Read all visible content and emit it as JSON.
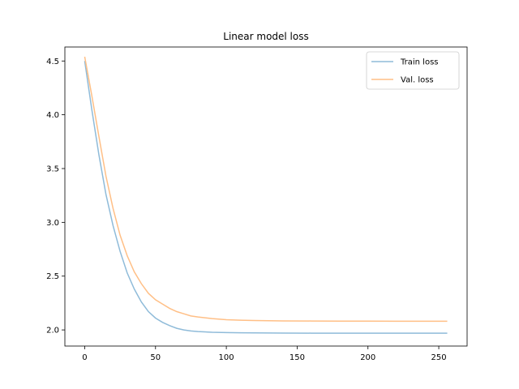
{
  "chart_data": {
    "type": "line",
    "title": "Linear model loss",
    "xlabel": "",
    "ylabel": "",
    "xlim": [
      -14,
      270
    ],
    "ylim": [
      1.85,
      4.63
    ],
    "xticks": [
      0,
      50,
      100,
      150,
      200,
      250
    ],
    "xtick_labels": [
      "0",
      "50",
      "100",
      "150",
      "200",
      "250"
    ],
    "yticks": [
      2.0,
      2.5,
      3.0,
      3.5,
      4.0,
      4.5
    ],
    "ytick_labels": [
      "2.0",
      "2.5",
      "3.0",
      "3.5",
      "4.0",
      "4.5"
    ],
    "grid": false,
    "legend_position": "top-right",
    "series": [
      {
        "name": "Train loss",
        "color": "#8fbbd9",
        "x": [
          0,
          5,
          10,
          15,
          20,
          25,
          30,
          35,
          40,
          45,
          50,
          55,
          60,
          65,
          70,
          75,
          80,
          90,
          100,
          110,
          120,
          140,
          160,
          180,
          200,
          220,
          240,
          256
        ],
        "y": [
          4.5,
          4.05,
          3.63,
          3.26,
          2.97,
          2.73,
          2.53,
          2.38,
          2.26,
          2.17,
          2.11,
          2.07,
          2.04,
          2.015,
          2.0,
          1.99,
          1.985,
          1.978,
          1.975,
          1.973,
          1.972,
          1.971,
          1.97,
          1.97,
          1.97,
          1.97,
          1.97,
          1.97
        ]
      },
      {
        "name": "Val. loss",
        "color": "#ffbf86",
        "x": [
          0,
          5,
          10,
          15,
          20,
          25,
          30,
          35,
          40,
          45,
          50,
          55,
          60,
          65,
          70,
          75,
          80,
          90,
          100,
          110,
          120,
          140,
          160,
          180,
          200,
          220,
          240,
          256
        ],
        "y": [
          4.54,
          4.18,
          3.8,
          3.43,
          3.13,
          2.88,
          2.69,
          2.54,
          2.43,
          2.34,
          2.28,
          2.24,
          2.2,
          2.17,
          2.15,
          2.13,
          2.12,
          2.105,
          2.095,
          2.09,
          2.087,
          2.084,
          2.083,
          2.082,
          2.082,
          2.081,
          2.081,
          2.081
        ]
      }
    ]
  }
}
